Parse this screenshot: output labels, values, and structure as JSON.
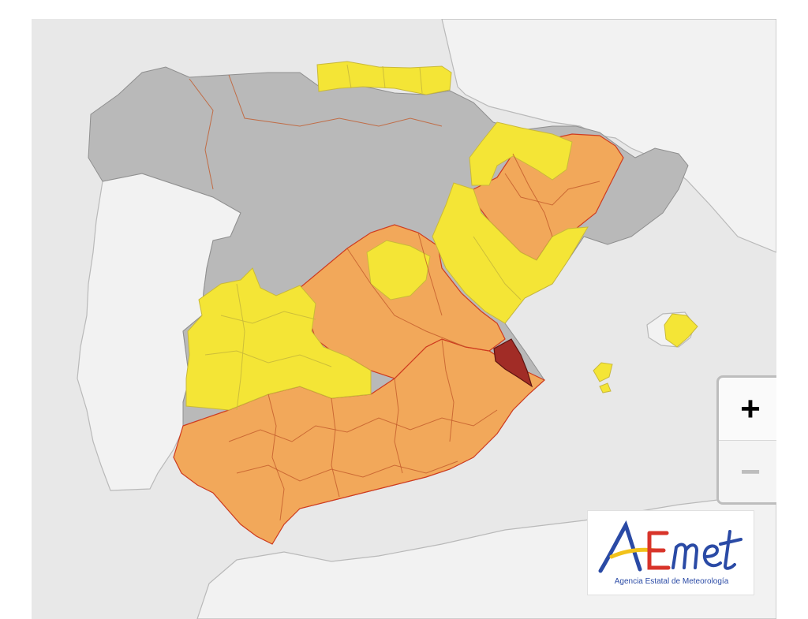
{
  "map": {
    "zoom": {
      "zoom_in_label": "+",
      "zoom_out_label": "−"
    }
  },
  "logo": {
    "wordmark": "AEmet",
    "caption": "Agencia Estatal de Meteorología"
  },
  "colors": {
    "no_warning": "#b9b9b9",
    "yellow_warning": "#f4e536",
    "orange_warning": "#f2a85a",
    "red_warning": "#a12c26",
    "sea": "#e8e8e8"
  }
}
